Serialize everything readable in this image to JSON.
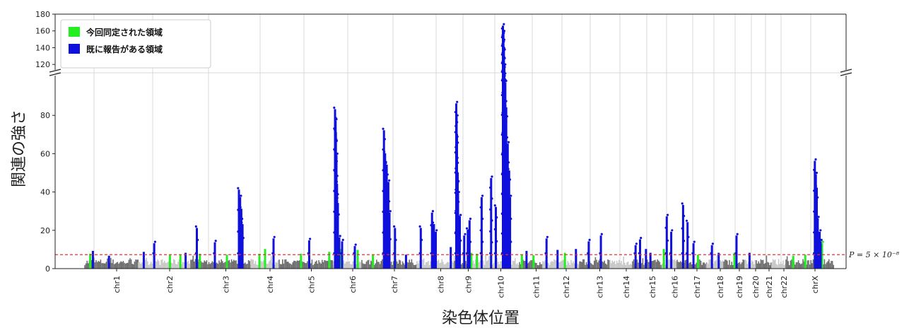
{
  "chart_data": {
    "type": "scatter",
    "subtype": "manhattan",
    "title": "",
    "xlabel": "染色体位置",
    "ylabel": "関連の強さ",
    "ylim_lower": [
      0,
      100
    ],
    "ylim_upper": [
      110,
      180
    ],
    "axis_break": true,
    "yticks_lower": [
      0,
      20,
      40,
      60,
      80
    ],
    "yticks_upper": [
      120,
      140,
      160,
      180
    ],
    "grid": "vertical",
    "threshold": {
      "value": 7.3,
      "label": "P = 5 × 10⁻⁸",
      "color": "#e83030"
    },
    "legend": {
      "placement": "top-left",
      "entries": [
        {
          "label": "今回同定された領域",
          "color": "#22ee22"
        },
        {
          "label": "既に報告がある領域",
          "color": "#1010dd"
        }
      ]
    },
    "colors": {
      "dark_gray": "#6e6e6e",
      "light_gray": "#c8c8c8",
      "novel": "#22ee22",
      "known": "#1010dd"
    },
    "chromosomes": [
      "chr1",
      "chr2",
      "chr3",
      "chr4",
      "chr5",
      "chr6",
      "chr7",
      "chr8",
      "chr9",
      "chr10",
      "chr11",
      "chr12",
      "chr13",
      "chr14",
      "chr15",
      "chr16",
      "chr17",
      "chr18",
      "chr19",
      "chr20",
      "chr21",
      "chr22",
      "chrX"
    ],
    "series": [
      {
        "name": "今回同定された領域",
        "type": "novel",
        "points": [
          [
            1,
            0.1,
            8.5
          ],
          [
            2,
            0.6,
            8
          ],
          [
            2,
            0.8,
            8
          ],
          [
            3,
            0.15,
            8.5
          ],
          [
            3,
            0.6,
            8
          ],
          [
            4,
            0.3,
            8.5
          ],
          [
            4,
            0.5,
            11
          ],
          [
            5,
            0.4,
            8.5
          ],
          [
            5,
            0.92,
            9.5
          ],
          [
            6,
            0.25,
            11
          ],
          [
            6,
            0.85,
            10.5
          ],
          [
            7,
            0.2,
            8
          ],
          [
            7,
            0.6,
            15
          ],
          [
            9,
            0.95,
            9
          ],
          [
            10,
            0.1,
            8.5
          ],
          [
            10,
            0.4,
            8.5
          ],
          [
            11,
            0.1,
            8
          ],
          [
            11,
            0.6,
            7.7
          ],
          [
            12,
            0.6,
            9
          ],
          [
            13,
            0.3,
            8.5
          ],
          [
            16,
            0.1,
            11
          ],
          [
            17,
            0.7,
            8
          ],
          [
            19,
            0.5,
            9
          ],
          [
            23,
            0.15,
            7.5
          ],
          [
            23,
            0.4,
            8
          ],
          [
            23,
            0.75,
            14
          ]
        ]
      },
      {
        "name": "既に報告がある領域",
        "type": "known",
        "points": [
          [
            1,
            0.15,
            10
          ],
          [
            1,
            0.45,
            7.5
          ],
          [
            2,
            0.1,
            9.5
          ],
          [
            2,
            0.3,
            14
          ],
          [
            2,
            0.9,
            9
          ],
          [
            3,
            0.1,
            22
          ],
          [
            3,
            0.4,
            14.5
          ],
          [
            3,
            0.8,
            42
          ],
          [
            3,
            0.82,
            38
          ],
          [
            3,
            0.84,
            32
          ],
          [
            3,
            0.86,
            24
          ],
          [
            4,
            0.8,
            16.5
          ],
          [
            5,
            0.55,
            15.5
          ],
          [
            6,
            0.05,
            84
          ],
          [
            6,
            0.07,
            78
          ],
          [
            6,
            0.08,
            72
          ],
          [
            6,
            0.1,
            60
          ],
          [
            6,
            0.12,
            45
          ],
          [
            6,
            0.15,
            35
          ],
          [
            6,
            0.2,
            17
          ],
          [
            6,
            0.3,
            15
          ],
          [
            6,
            0.75,
            12.5
          ],
          [
            7,
            0.4,
            73
          ],
          [
            7,
            0.42,
            61
          ],
          [
            7,
            0.45,
            55
          ],
          [
            7,
            0.48,
            46
          ],
          [
            7,
            0.5,
            30
          ],
          [
            7,
            0.6,
            22
          ],
          [
            7,
            0.8,
            8
          ],
          [
            8,
            0.1,
            22
          ],
          [
            8,
            0.4,
            30
          ],
          [
            8,
            0.45,
            24
          ],
          [
            8,
            0.5,
            20
          ],
          [
            8,
            0.9,
            12
          ],
          [
            9,
            0.1,
            87
          ],
          [
            9,
            0.12,
            80
          ],
          [
            9,
            0.14,
            71
          ],
          [
            9,
            0.18,
            51
          ],
          [
            9,
            0.2,
            40
          ],
          [
            9,
            0.3,
            28
          ],
          [
            9,
            0.55,
            18
          ],
          [
            9,
            0.75,
            21
          ],
          [
            9,
            0.85,
            26
          ],
          [
            10,
            0.2,
            38
          ],
          [
            10,
            0.4,
            48
          ],
          [
            10,
            0.5,
            33
          ],
          [
            10,
            0.65,
            168
          ],
          [
            10,
            0.66,
            160
          ],
          [
            10,
            0.67,
            143
          ],
          [
            10,
            0.68,
            120
          ],
          [
            10,
            0.7,
            98
          ],
          [
            10,
            0.72,
            85
          ],
          [
            10,
            0.75,
            66
          ],
          [
            10,
            0.78,
            52
          ],
          [
            10,
            0.8,
            38
          ],
          [
            11,
            0.3,
            10
          ],
          [
            12,
            0.1,
            16.5
          ],
          [
            12,
            0.4,
            10.5
          ],
          [
            12,
            0.9,
            11
          ],
          [
            13,
            0.3,
            15
          ],
          [
            13,
            0.7,
            18
          ],
          [
            15,
            0.1,
            13
          ],
          [
            15,
            0.25,
            16
          ],
          [
            15,
            0.45,
            11
          ],
          [
            15,
            0.6,
            9
          ],
          [
            16,
            0.3,
            28
          ],
          [
            16,
            0.6,
            20
          ],
          [
            17,
            0.2,
            34
          ],
          [
            17,
            0.35,
            25
          ],
          [
            17,
            0.55,
            14
          ],
          [
            18,
            0.3,
            13
          ],
          [
            18,
            0.7,
            9
          ],
          [
            19,
            0.6,
            18
          ],
          [
            20,
            0.4,
            9
          ],
          [
            23,
            0.6,
            57
          ],
          [
            23,
            0.62,
            50
          ],
          [
            23,
            0.64,
            43
          ],
          [
            23,
            0.66,
            27
          ],
          [
            23,
            0.7,
            20
          ],
          [
            23,
            0.72,
            15
          ]
        ]
      }
    ]
  }
}
